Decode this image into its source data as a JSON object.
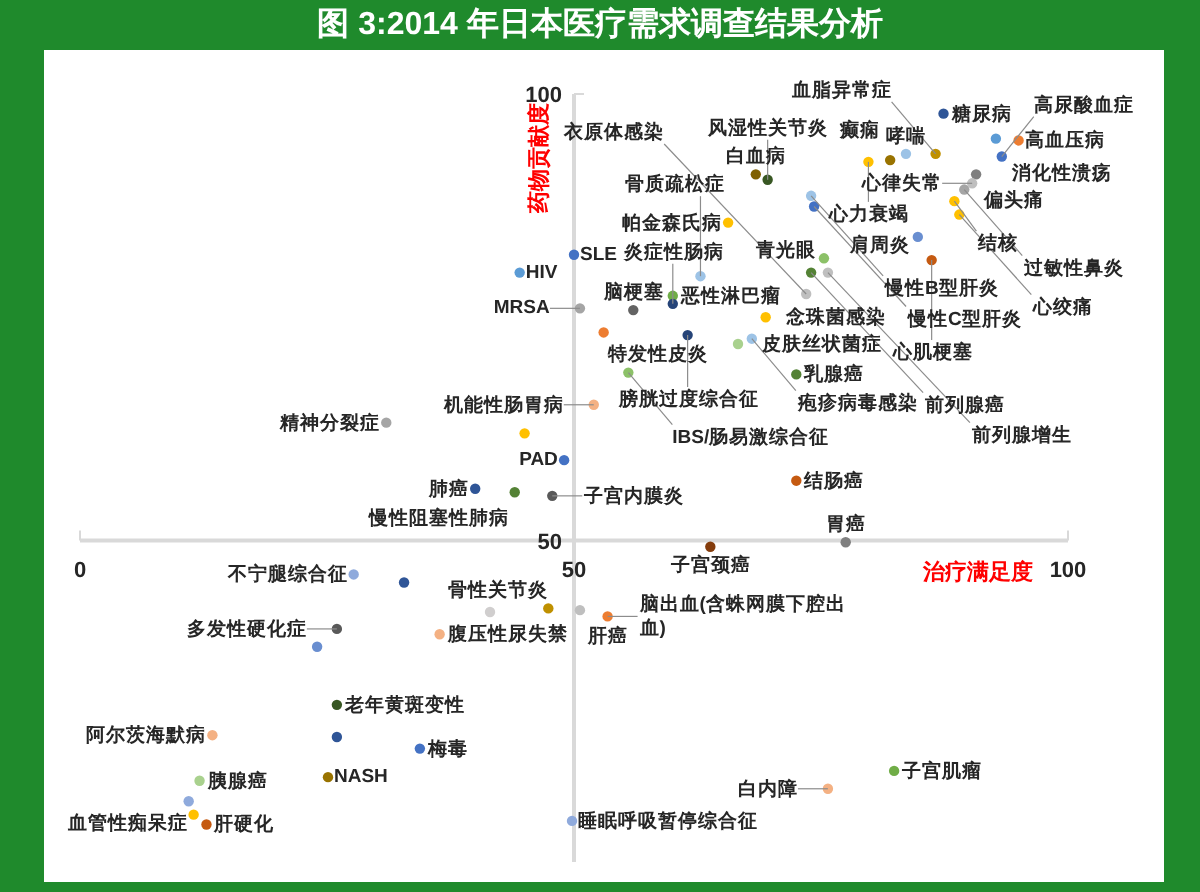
{
  "chart_data": {
    "type": "scatter",
    "title": "图 3:2014 年日本医疗需求调查结果分析",
    "xlabel": "治疗满足度",
    "ylabel": "药物贡献度",
    "xlim": [
      0,
      100
    ],
    "ylim": [
      14,
      100
    ],
    "xticks": [
      0,
      50,
      100
    ],
    "yticks": [
      50,
      100
    ],
    "marker": "circle",
    "grid": false,
    "series": [
      {
        "x": [
          50,
          44.5,
          50.6,
          56,
          60,
          60,
          53,
          61.5,
          55.5,
          66.6,
          68,
          69.4,
          52,
          31,
          45,
          49,
          40,
          44,
          47.8,
          65.6,
          62.8,
          68.4,
          69.6,
          72.5,
          72.5,
          87.4,
          92.7,
          95,
          93.3,
          90.7,
          90.3,
          83.6,
          82,
          79.8,
          86.6,
          88.5,
          74,
          74.3,
          84.8,
          86.2,
          75.3,
          74,
          75.7,
          73.5,
          63.8,
          77.5,
          50.6,
          53.4,
          82.4,
          75.7,
          49.8,
          27.7,
          32.8,
          26,
          24,
          41.5,
          47.4,
          36.4,
          26,
          26,
          34.4,
          13.4,
          12.1,
          25.1,
          11,
          11.5,
          12.8,
          89.5,
          89
        ],
        "values": [
          82,
          80,
          76,
          75.8,
          77.4,
          76.5,
          73.3,
          73,
          68.8,
          72,
          72.6,
          75,
          65.2,
          63.2,
          62,
          59,
          55.8,
          55.4,
          55,
          85.6,
          79.6,
          91,
          90.4,
          56.7,
          68.6,
          97.8,
          95,
          94.8,
          93,
          91,
          90,
          93.3,
          92.6,
          92.4,
          93.3,
          88,
          88.6,
          87.4,
          84,
          81.4,
          81.6,
          80,
          80,
          77.6,
          49.3,
          49.8,
          42.2,
          41.5,
          24.2,
          22.2,
          18.6,
          46.2,
          45.3,
          40.1,
          38.1,
          42,
          42.4,
          39.5,
          31.6,
          28,
          26.7,
          28.2,
          23.1,
          23.5,
          20.8,
          19.3,
          18.2,
          89.3,
          86.5
        ],
        "colors": [
          "#4472c4",
          "#5b9bd5",
          "#a5a5a5",
          "#636363",
          "#70ad47",
          "#264478",
          "#ed7d31",
          "#264478",
          "#8cc168",
          "#a9d18e",
          "#9dc3e6",
          "#ffc000",
          "#f4b183",
          "#a5a5a5",
          "#ffc000",
          "#4472c4",
          "#2f5597",
          "#548235",
          "#595959",
          "#ffc000",
          "#9dc3e6",
          "#7f6000",
          "#385723",
          "#c55a11",
          "#548235",
          "#2f5597",
          "#5b9bd5",
          "#ed7d31",
          "#4472c4",
          "#7f7f7f",
          "#bfbfbf",
          "#9dc3e6",
          "#997300",
          "#ffc000",
          "#bf9000",
          "#ffc000",
          "#9dc3e6",
          "#4472c4",
          "#698ed0",
          "#c55a11",
          "#8cc168",
          "#548235",
          "#bfbfbf",
          "#bfbfbf",
          "#843c0c",
          "#7f7f7f",
          "#bfbfbf",
          "#ed7d31",
          "#70ad47",
          "#f4b183",
          "#8faadc",
          "#8faadc",
          "#2f5597",
          "#595959",
          "#698ed0",
          "#d0cece",
          "#bf9000",
          "#f4b183",
          "#385723",
          "#2f5597",
          "#4472c4",
          "#f4b183",
          "#a9d18e",
          "#997300",
          "#8faadc",
          "#ffc000",
          "#c55a11",
          "#a5a5a5",
          "#ffc000"
        ]
      }
    ],
    "annotations": [
      {
        "text": "SLE",
        "x": 50,
        "y": 82
      },
      {
        "text": "HIV",
        "x": 44.5,
        "y": 80
      },
      {
        "text": "MRSA",
        "x": 50.6,
        "y": 76
      },
      {
        "text": "脑梗塞",
        "x": 56,
        "y": 75.8
      },
      {
        "text": "恶性淋巴瘤",
        "x": 60,
        "y": 77.4
      },
      {
        "text": "炎症性肠病",
        "x": 60,
        "y": 76.5
      },
      {
        "text": "特发性皮炎",
        "x": 53,
        "y": 73.3
      },
      {
        "text": "膀胱过度综合征",
        "x": 61.5,
        "y": 73
      },
      {
        "text": "IBS/肠易激综合征",
        "x": 55.5,
        "y": 68.8
      },
      {
        "text": "皮肤丝状菌症",
        "x": 66.6,
        "y": 72
      },
      {
        "text": "疱疹病毒感染",
        "x": 68,
        "y": 72.6
      },
      {
        "text": "念珠菌感染",
        "x": 69.4,
        "y": 75
      },
      {
        "text": "机能性肠胃病",
        "x": 52,
        "y": 65.2
      },
      {
        "text": "精神分裂症",
        "x": 31,
        "y": 63.2
      },
      {
        "text": "PAD",
        "x": 49,
        "y": 59
      },
      {
        "text": "肺癌",
        "x": 40,
        "y": 55.8
      },
      {
        "text": "慢性阻塞性肺病",
        "x": 44,
        "y": 55.4
      },
      {
        "text": "子宫内膜炎",
        "x": 47.8,
        "y": 55
      },
      {
        "text": "帕金森氏病",
        "x": 65.6,
        "y": 85.6
      },
      {
        "text": "骨质疏松症",
        "x": 62.8,
        "y": 79.6
      },
      {
        "text": "白血病",
        "x": 68.4,
        "y": 91
      },
      {
        "text": "风湿性关节炎",
        "x": 69.6,
        "y": 90.4
      },
      {
        "text": "结肠癌",
        "x": 72.5,
        "y": 56.7
      },
      {
        "text": "乳腺癌",
        "x": 72.5,
        "y": 68.6
      },
      {
        "text": "糖尿病",
        "x": 87.4,
        "y": 97.8
      },
      {
        "text": "消化性溃疡",
        "x": 92.7,
        "y": 95
      },
      {
        "text": "高血压病",
        "x": 95,
        "y": 94.8
      },
      {
        "text": "高尿酸血症",
        "x": 93.3,
        "y": 93
      },
      {
        "text": "偏头痛",
        "x": 90.7,
        "y": 91
      },
      {
        "text": "心律失常",
        "x": 90.3,
        "y": 90
      },
      {
        "text": "哮喘",
        "x": 83.6,
        "y": 93.3
      },
      {
        "text": "癫痫",
        "x": 82,
        "y": 92.6
      },
      {
        "text": "心力衰竭",
        "x": 79.8,
        "y": 92.4
      },
      {
        "text": "血脂异常症",
        "x": 86.6,
        "y": 93.3
      },
      {
        "text": "结核",
        "x": 88.5,
        "y": 88
      },
      {
        "text": "慢性B型肝炎",
        "x": 74,
        "y": 88.6
      },
      {
        "text": "慢性C型肝炎",
        "x": 74.3,
        "y": 87.4
      },
      {
        "text": "肩周炎",
        "x": 84.8,
        "y": 84
      },
      {
        "text": "心肌梗塞",
        "x": 86.2,
        "y": 81.4
      },
      {
        "text": "青光眼",
        "x": 75.3,
        "y": 81.6
      },
      {
        "text": "前列腺癌",
        "x": 74,
        "y": 80
      },
      {
        "text": "前列腺增生",
        "x": 75.7,
        "y": 80
      },
      {
        "text": "衣原体感染",
        "x": 73.5,
        "y": 77.6
      },
      {
        "text": "子宫颈癌",
        "x": 63.8,
        "y": 49.3
      },
      {
        "text": "胃癌",
        "x": 77.5,
        "y": 49.8
      },
      {
        "text": "肝癌",
        "x": 50.6,
        "y": 42.2
      },
      {
        "text": "脑出血(含蛛网膜下腔出血)",
        "x": 53.4,
        "y": 41.5
      },
      {
        "text": "子宫肌瘤",
        "x": 82.4,
        "y": 24.2
      },
      {
        "text": "白内障",
        "x": 75.7,
        "y": 22.2
      },
      {
        "text": "睡眠呼吸暂停综合征",
        "x": 49.8,
        "y": 18.6
      },
      {
        "text": "不宁腿综合征",
        "x": 27.7,
        "y": 46.2
      },
      {
        "text": "多发性硬化症",
        "x": 26,
        "y": 40.1
      },
      {
        "text": "骨性关节炎",
        "x": 47.4,
        "y": 42.4
      },
      {
        "text": "腹压性尿失禁",
        "x": 36.4,
        "y": 39.5
      },
      {
        "text": "老年黄斑变性",
        "x": 26,
        "y": 31.6
      },
      {
        "text": "梅毒",
        "x": 34.4,
        "y": 26.7
      },
      {
        "text": "阿尔茨海默病",
        "x": 13.4,
        "y": 28.2
      },
      {
        "text": "胰腺癌",
        "x": 12.1,
        "y": 23.1
      },
      {
        "text": "NASH",
        "x": 25.1,
        "y": 23.5
      },
      {
        "text": "血管性痴呆症",
        "x": 11.5,
        "y": 19.3
      },
      {
        "text": "肝硬化",
        "x": 12.8,
        "y": 18.2
      },
      {
        "text": "过敏性鼻炎",
        "x": 89.5,
        "y": 89.3
      },
      {
        "text": "心绞痛",
        "x": 89,
        "y": 86.5
      }
    ]
  }
}
